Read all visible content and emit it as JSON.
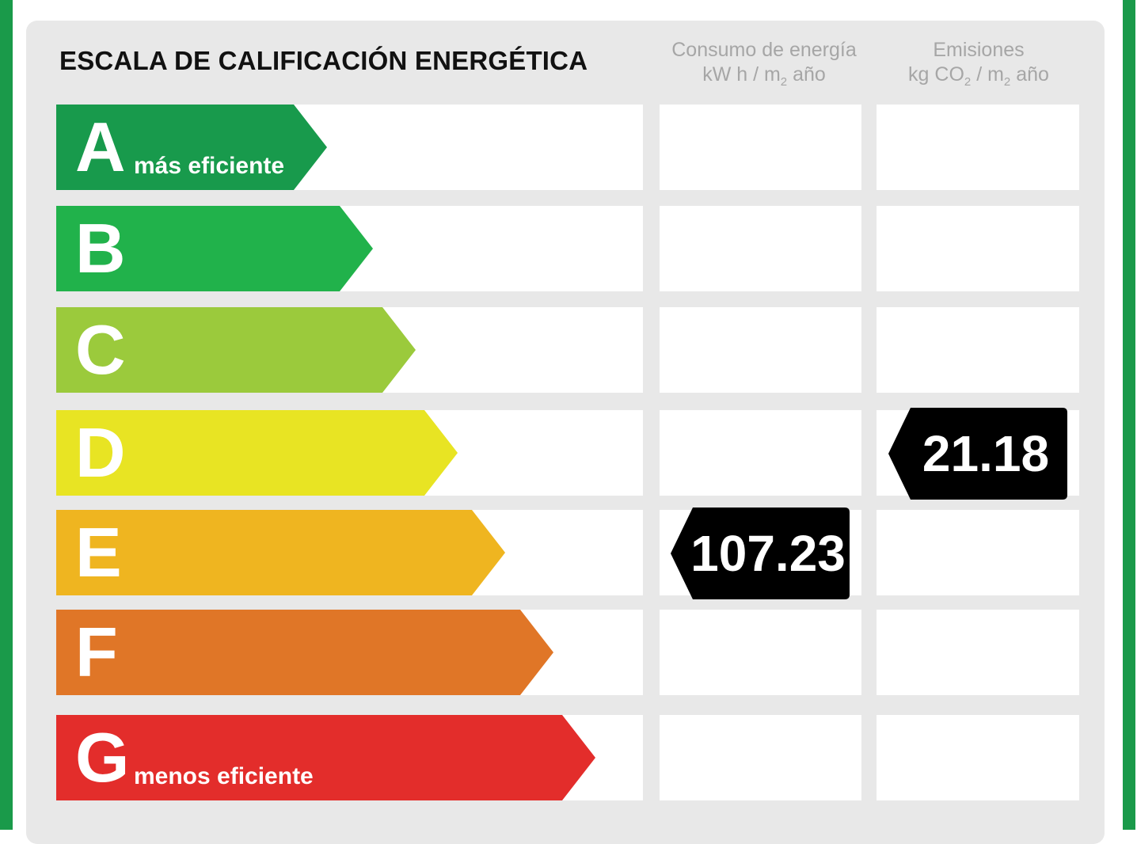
{
  "colors": {
    "border": "#1a9a4a",
    "panel": "#e8e8e8",
    "marker": "#000000",
    "classes": [
      "#189a4c",
      "#21b24b",
      "#9bca3c",
      "#e8e423",
      "#efb520",
      "#e07627",
      "#e32d2b"
    ]
  },
  "chart_data": {
    "type": "bar",
    "title": "ESCALA DE CALIFICACIÓN ENERGÉTICA",
    "categories": [
      "A",
      "B",
      "C",
      "D",
      "E",
      "F",
      "G"
    ],
    "category_notes": {
      "A": "más eficiente",
      "G": "menos eficiente"
    },
    "columns": [
      {
        "name": "Consumo de energía",
        "unit_prefix": "kW h / m",
        "unit_sub": "2",
        "unit_suffix": " año",
        "value": "107.23",
        "rating": "E"
      },
      {
        "name": "Emisiones",
        "unit_prefix": "kg CO",
        "unit_sub": "2",
        "unit_mid": " / m",
        "unit_sub2": "2",
        "unit_suffix": " año",
        "value": "21.18",
        "rating": "D"
      }
    ]
  }
}
